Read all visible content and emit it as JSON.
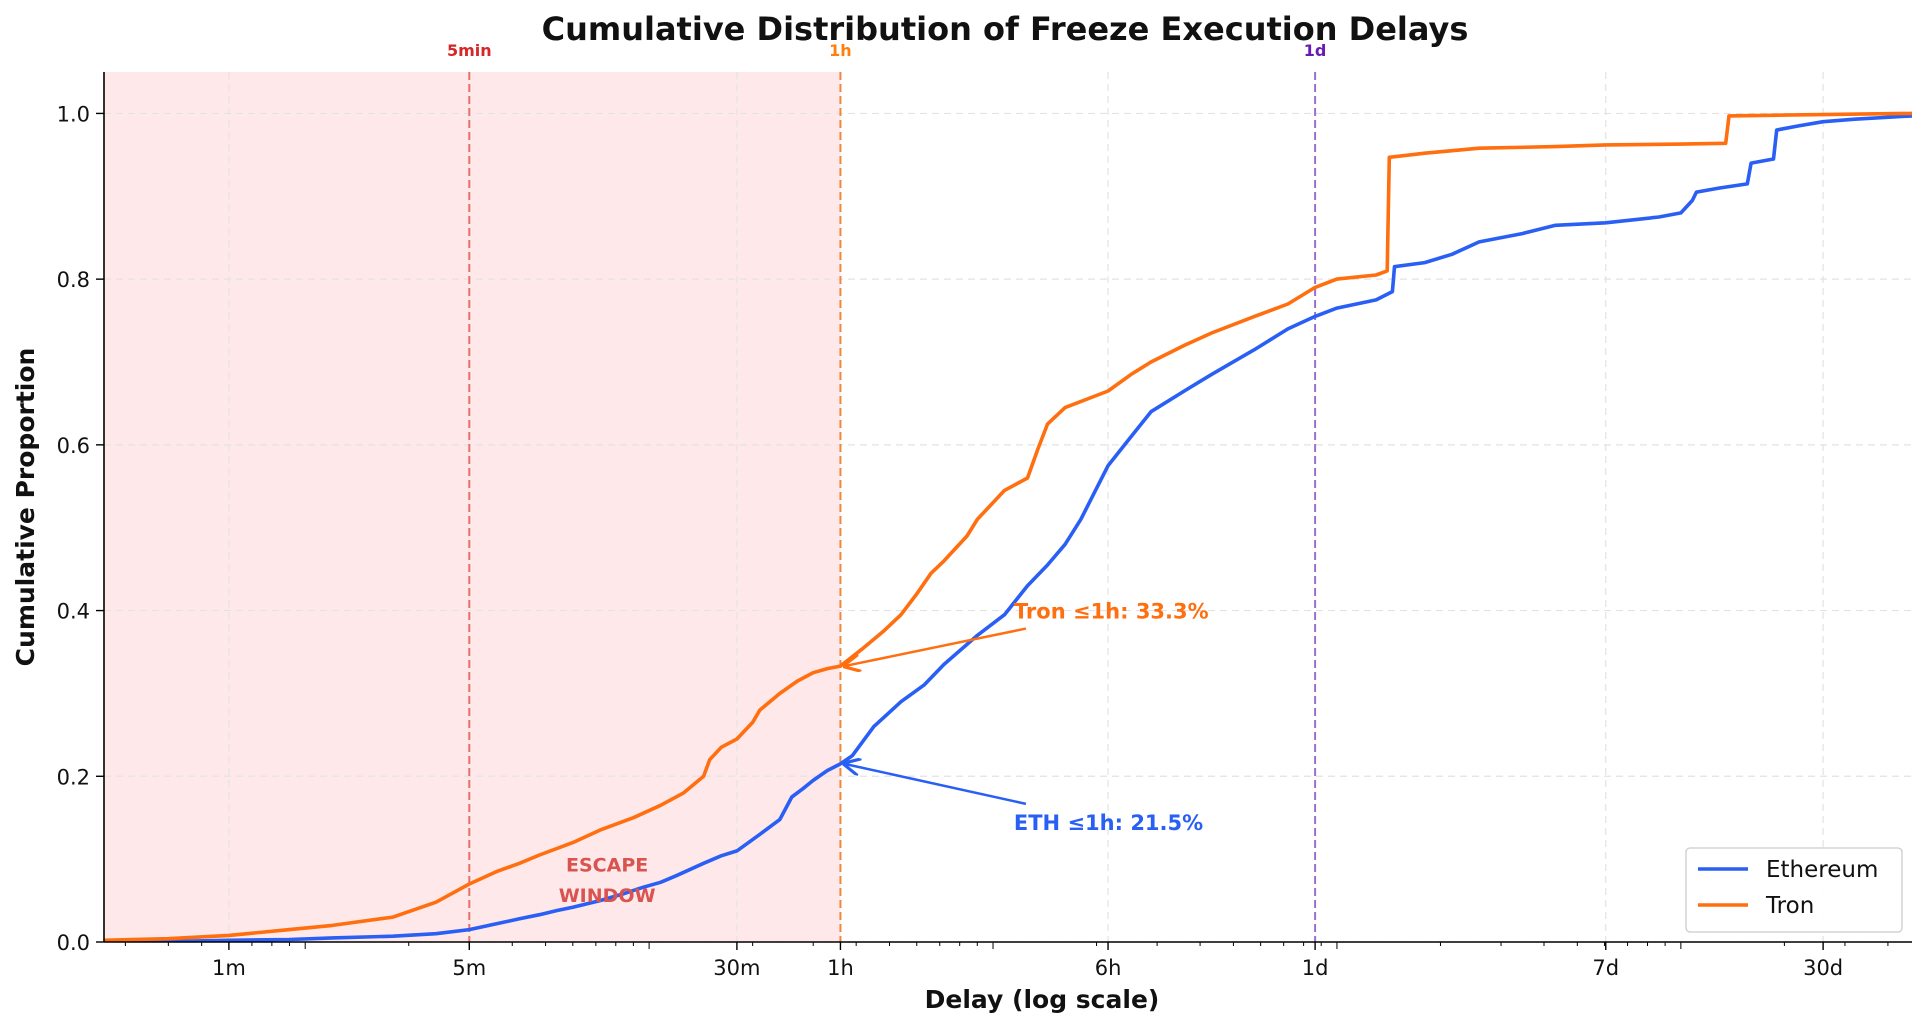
{
  "chart_data": {
    "type": "line",
    "title": "Cumulative Distribution of Freeze Execution Delays",
    "xlabel": "Delay (log scale)",
    "ylabel": "Cumulative Proportion",
    "x_scale": "log",
    "x_unit": "seconds",
    "xlim": [
      26,
      4700000
    ],
    "ylim": [
      0,
      1.05
    ],
    "x_ticks": [
      {
        "value": 60,
        "label": "1m"
      },
      {
        "value": 300,
        "label": "5m"
      },
      {
        "value": 1800,
        "label": "30m"
      },
      {
        "value": 3600,
        "label": "1h"
      },
      {
        "value": 21600,
        "label": "6h"
      },
      {
        "value": 86400,
        "label": "1d"
      },
      {
        "value": 604800,
        "label": "7d"
      },
      {
        "value": 2592000,
        "label": "30d"
      }
    ],
    "y_ticks": [
      {
        "value": 0.0,
        "label": "0.0"
      },
      {
        "value": 0.2,
        "label": "0.2"
      },
      {
        "value": 0.4,
        "label": "0.4"
      },
      {
        "value": 0.6,
        "label": "0.6"
      },
      {
        "value": 0.8,
        "label": "0.8"
      },
      {
        "value": 1.0,
        "label": "1.0"
      }
    ],
    "grid": true,
    "legend_position": "bottom-right",
    "shaded_region": {
      "x_from": 26,
      "x_to": 3600,
      "label_line1": "ESCAPE",
      "label_line2": "WINDOW",
      "color": "#ffe8ea",
      "label_color": "#d9534f"
    },
    "vlines": [
      {
        "x": 300,
        "label": "5min",
        "color": "#e8706b",
        "label_color": "#d62728"
      },
      {
        "x": 3600,
        "label": "1h",
        "color": "#f0873e",
        "label_color": "#ff7f0e"
      },
      {
        "x": 86400,
        "label": "1d",
        "color": "#9b6fcf",
        "label_color": "#6a1bb3"
      }
    ],
    "series": [
      {
        "name": "Ethereum",
        "color": "#2a5ff5",
        "points": [
          [
            26,
            0
          ],
          [
            45,
            0.001
          ],
          [
            60,
            0.002
          ],
          [
            90,
            0.003
          ],
          [
            120,
            0.005
          ],
          [
            180,
            0.007
          ],
          [
            240,
            0.01
          ],
          [
            300,
            0.015
          ],
          [
            360,
            0.022
          ],
          [
            420,
            0.028
          ],
          [
            480,
            0.033
          ],
          [
            540,
            0.038
          ],
          [
            600,
            0.042
          ],
          [
            720,
            0.05
          ],
          [
            840,
            0.058
          ],
          [
            960,
            0.066
          ],
          [
            1080,
            0.072
          ],
          [
            1200,
            0.08
          ],
          [
            1440,
            0.095
          ],
          [
            1620,
            0.104
          ],
          [
            1800,
            0.11
          ],
          [
            2100,
            0.13
          ],
          [
            2400,
            0.148
          ],
          [
            2600,
            0.175
          ],
          [
            2800,
            0.185
          ],
          [
            3000,
            0.195
          ],
          [
            3300,
            0.207
          ],
          [
            3600,
            0.215
          ],
          [
            3900,
            0.225
          ],
          [
            4500,
            0.26
          ],
          [
            5400,
            0.29
          ],
          [
            6300,
            0.31
          ],
          [
            7200,
            0.335
          ],
          [
            9000,
            0.37
          ],
          [
            10800,
            0.395
          ],
          [
            12600,
            0.43
          ],
          [
            14400,
            0.455
          ],
          [
            16200,
            0.48
          ],
          [
            18000,
            0.51
          ],
          [
            21600,
            0.575
          ],
          [
            25200,
            0.61
          ],
          [
            28800,
            0.64
          ],
          [
            36000,
            0.665
          ],
          [
            43200,
            0.685
          ],
          [
            57600,
            0.715
          ],
          [
            72000,
            0.74
          ],
          [
            86400,
            0.755
          ],
          [
            100000,
            0.765
          ],
          [
            130000,
            0.775
          ],
          [
            145000,
            0.785
          ],
          [
            147000,
            0.815
          ],
          [
            180000,
            0.82
          ],
          [
            216000,
            0.83
          ],
          [
            259200,
            0.845
          ],
          [
            345600,
            0.855
          ],
          [
            432000,
            0.865
          ],
          [
            604800,
            0.868
          ],
          [
            864000,
            0.875
          ],
          [
            1000000,
            0.88
          ],
          [
            1080000,
            0.895
          ],
          [
            1110000,
            0.905
          ],
          [
            1296000,
            0.91
          ],
          [
            1560000,
            0.915
          ],
          [
            1600000,
            0.94
          ],
          [
            1860000,
            0.945
          ],
          [
            1900000,
            0.98
          ],
          [
            2200000,
            0.985
          ],
          [
            2592000,
            0.99
          ],
          [
            3200000,
            0.993
          ],
          [
            4700000,
            0.997
          ]
        ]
      },
      {
        "name": "Tron",
        "color": "#ff6e0f",
        "points": [
          [
            26,
            0.002
          ],
          [
            40,
            0.004
          ],
          [
            60,
            0.008
          ],
          [
            90,
            0.015
          ],
          [
            120,
            0.02
          ],
          [
            180,
            0.03
          ],
          [
            240,
            0.048
          ],
          [
            300,
            0.07
          ],
          [
            360,
            0.085
          ],
          [
            420,
            0.095
          ],
          [
            480,
            0.105
          ],
          [
            600,
            0.12
          ],
          [
            720,
            0.135
          ],
          [
            900,
            0.15
          ],
          [
            1080,
            0.165
          ],
          [
            1260,
            0.18
          ],
          [
            1440,
            0.2
          ],
          [
            1500,
            0.22
          ],
          [
            1620,
            0.235
          ],
          [
            1800,
            0.245
          ],
          [
            2000,
            0.265
          ],
          [
            2100,
            0.28
          ],
          [
            2400,
            0.3
          ],
          [
            2700,
            0.315
          ],
          [
            3000,
            0.325
          ],
          [
            3300,
            0.33
          ],
          [
            3600,
            0.333
          ],
          [
            4200,
            0.355
          ],
          [
            4800,
            0.375
          ],
          [
            5400,
            0.395
          ],
          [
            6000,
            0.42
          ],
          [
            6600,
            0.445
          ],
          [
            7200,
            0.46
          ],
          [
            8400,
            0.49
          ],
          [
            9000,
            0.51
          ],
          [
            10800,
            0.545
          ],
          [
            12600,
            0.56
          ],
          [
            13500,
            0.595
          ],
          [
            14400,
            0.625
          ],
          [
            16200,
            0.645
          ],
          [
            21600,
            0.665
          ],
          [
            25200,
            0.685
          ],
          [
            28800,
            0.7
          ],
          [
            36000,
            0.72
          ],
          [
            43200,
            0.735
          ],
          [
            57600,
            0.755
          ],
          [
            72000,
            0.77
          ],
          [
            86400,
            0.79
          ],
          [
            100000,
            0.8
          ],
          [
            130000,
            0.805
          ],
          [
            140000,
            0.81
          ],
          [
            142000,
            0.947
          ],
          [
            180000,
            0.952
          ],
          [
            259200,
            0.958
          ],
          [
            432000,
            0.96
          ],
          [
            604800,
            0.962
          ],
          [
            1000000,
            0.963
          ],
          [
            1350000,
            0.964
          ],
          [
            1380000,
            0.997
          ],
          [
            2000000,
            0.998
          ],
          [
            4700000,
            1.0
          ]
        ]
      }
    ],
    "annotations": [
      {
        "text": "Tron ≤1h: 33.3%",
        "series": "Tron",
        "point": [
          3600,
          0.333
        ],
        "text_pos": [
          11500,
          0.4
        ],
        "color": "#ff6e0f"
      },
      {
        "text": "ETH ≤1h: 21.5%",
        "series": "Ethereum",
        "point": [
          3600,
          0.215
        ],
        "text_pos": [
          11500,
          0.145
        ],
        "color": "#2a5ff5"
      }
    ]
  }
}
